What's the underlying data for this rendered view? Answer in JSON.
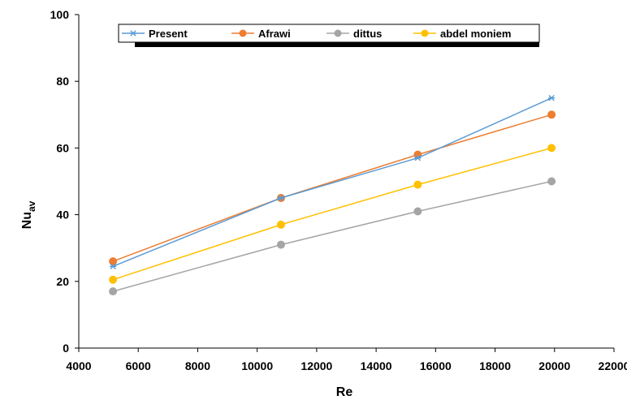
{
  "chart_data": {
    "type": "line",
    "title": "",
    "xlabel": "Re",
    "ylabel": {
      "main": "Nu",
      "sub": "av"
    },
    "xlim": [
      4000,
      22000
    ],
    "ylim": [
      0,
      100
    ],
    "xticks": [
      4000,
      6000,
      8000,
      10000,
      12000,
      14000,
      16000,
      18000,
      20000,
      22000
    ],
    "yticks": [
      0,
      20,
      40,
      60,
      80,
      100
    ],
    "grid": false,
    "legend_position": "top",
    "series": [
      {
        "name": "Present",
        "color": "#5B9BD5",
        "marker": "star",
        "x": [
          5150,
          10800,
          15400,
          19900
        ],
        "y": [
          24.5,
          45,
          57,
          75
        ]
      },
      {
        "name": "Afrawi",
        "color": "#ED7D31",
        "marker": "circle",
        "x": [
          5150,
          10800,
          15400,
          19900
        ],
        "y": [
          26,
          45,
          58,
          70
        ]
      },
      {
        "name": "dittus",
        "color": "#A5A5A5",
        "marker": "circle",
        "x": [
          5150,
          10800,
          15400,
          19900
        ],
        "y": [
          17,
          31,
          41,
          50
        ]
      },
      {
        "name": "abdel moniem",
        "color": "#FFC000",
        "marker": "circle",
        "x": [
          5150,
          10800,
          15400,
          19900
        ],
        "y": [
          20.5,
          37,
          49,
          60
        ]
      }
    ]
  }
}
